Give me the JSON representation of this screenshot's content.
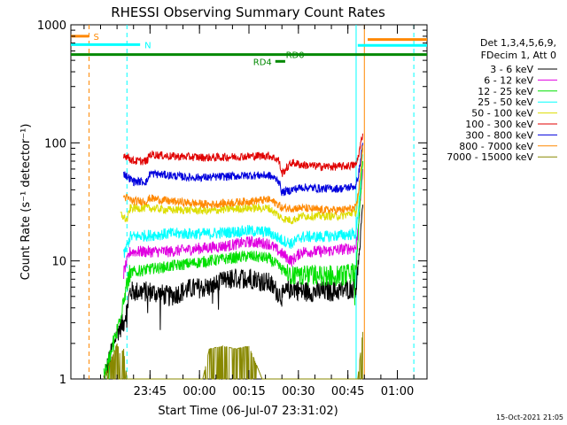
{
  "chart_data": {
    "type": "line",
    "title": "RHESSI Observing Summary Count Rates",
    "xlabel": "Start Time (06-Jul-07 23:31:02)",
    "ylabel": "Count Rate (s⁻¹ detector⁻¹)",
    "y_scale": "log",
    "ylim": [
      1,
      1000
    ],
    "xlim_minutes": [
      -10,
      98
    ],
    "x_ticks": [
      {
        "minute": 14,
        "label": "23:45"
      },
      {
        "minute": 29,
        "label": "00:00"
      },
      {
        "minute": 44,
        "label": "00:15"
      },
      {
        "minute": 59,
        "label": "00:30"
      },
      {
        "minute": 74,
        "label": "00:45"
      },
      {
        "minute": 89,
        "label": "01:00"
      }
    ],
    "y_ticks": [
      {
        "value": 1,
        "label": "1"
      },
      {
        "value": 10,
        "label": "10"
      },
      {
        "value": 100,
        "label": "100"
      },
      {
        "value": 1000,
        "label": "1000"
      }
    ],
    "grid": false,
    "legend_position": "right",
    "legend_header": [
      "Det 1,3,4,5,6,9,",
      "FDecim 1, Att 0"
    ],
    "series": [
      {
        "name": "3 - 6 keV",
        "color": "#000000",
        "x": [
          0,
          4,
          6,
          8,
          14,
          20,
          26,
          32,
          38,
          44,
          50,
          54,
          57,
          60,
          66,
          72,
          76.5,
          77.5,
          78.5
        ],
        "y": [
          1,
          2.5,
          3,
          5.5,
          5.5,
          5,
          5.8,
          6,
          7,
          7.2,
          6.5,
          5,
          6,
          5.5,
          5.5,
          5.6,
          6,
          12,
          30
        ]
      },
      {
        "name": "6 - 12 keV",
        "color": "#e000e0",
        "x": [
          6,
          8,
          14,
          20,
          26,
          32,
          38,
          44,
          50,
          54,
          57,
          60,
          66,
          72,
          76.5,
          77.5,
          78.5
        ],
        "y": [
          8,
          12,
          12,
          12,
          12.5,
          13,
          13.5,
          14.5,
          14,
          11.5,
          10,
          12,
          12,
          12.5,
          13,
          25,
          60
        ]
      },
      {
        "name": "12 - 25 keV",
        "color": "#00e000",
        "x": [
          0,
          4,
          6,
          8,
          14,
          20,
          26,
          32,
          38,
          44,
          50,
          54,
          57,
          60,
          66,
          72,
          76.5,
          77.5,
          78.5
        ],
        "y": [
          1,
          2.5,
          5,
          8,
          8.5,
          9,
          9.5,
          10,
          10.5,
          11,
          10.5,
          8.5,
          7.5,
          7.5,
          7.5,
          7.5,
          8,
          25,
          70
        ]
      },
      {
        "name": "25 - 50 keV",
        "color": "#00ffff",
        "x": [
          6,
          8,
          14,
          20,
          26,
          32,
          38,
          44,
          50,
          54,
          57,
          60,
          66,
          72,
          76.5,
          77.5,
          78.5
        ],
        "y": [
          11,
          16,
          16.5,
          17,
          17,
          17,
          17.5,
          18,
          17.5,
          15,
          14,
          16,
          16,
          16.5,
          17,
          35,
          80
        ]
      },
      {
        "name": "50 - 100 keV",
        "color": "#dddd00",
        "x": [
          5,
          7,
          8,
          14,
          20,
          26,
          32,
          38,
          44,
          50,
          54,
          57,
          60,
          66,
          72,
          76.5,
          77.5,
          78.5
        ],
        "y": [
          25,
          22,
          28,
          28,
          27,
          27,
          26.5,
          27.5,
          28,
          28,
          23,
          22,
          24,
          24,
          24,
          26,
          40,
          90
        ]
      },
      {
        "name": "100 - 300 keV",
        "color": "#e00000",
        "x": [
          6,
          9,
          13,
          14,
          20,
          26,
          32,
          38,
          44,
          50,
          53,
          54,
          57,
          60,
          66,
          72,
          76.5,
          77.5,
          78.5
        ],
        "y": [
          80,
          70,
          70,
          80,
          77,
          76,
          75,
          76,
          77,
          78,
          72,
          55,
          68,
          65,
          63,
          63,
          65,
          85,
          120
        ]
      },
      {
        "name": "300 - 800 keV",
        "color": "#0000dd",
        "x": [
          6,
          9,
          13,
          14,
          20,
          26,
          32,
          38,
          44,
          50,
          53,
          54,
          57,
          60,
          66,
          72,
          76.5,
          77.5,
          78.5
        ],
        "y": [
          55,
          47,
          47,
          55,
          53,
          51,
          51,
          52,
          53,
          53,
          48,
          38,
          40,
          42,
          41,
          41,
          43,
          60,
          100
        ]
      },
      {
        "name": "800 - 7000 keV",
        "color": "#ff8800",
        "x": [
          6,
          9,
          13,
          14,
          20,
          26,
          32,
          38,
          44,
          50,
          53,
          54,
          57,
          60,
          66,
          72,
          76.5,
          77.5,
          78.5
        ],
        "y": [
          35,
          32,
          32,
          34,
          32,
          31,
          30,
          31,
          32,
          33,
          30,
          28,
          28,
          28,
          27,
          27,
          28,
          45,
          95
        ]
      },
      {
        "name": "7000 - 15000 keV",
        "color": "#888800",
        "x": [
          0,
          4,
          5,
          6,
          7,
          30,
          32,
          36,
          40,
          44,
          48,
          77,
          78.5
        ],
        "y": [
          1,
          2,
          1.6,
          1.8,
          1,
          1,
          1.8,
          1.9,
          1.8,
          1.9,
          1,
          1,
          2.5
        ]
      }
    ],
    "annotations": [
      {
        "text": "S",
        "color": "#ff8800",
        "x_start": -10,
        "x_end": -4.5,
        "y": 800
      },
      {
        "text": "N",
        "color": "#00ffff",
        "x_start": -10,
        "x_end": 11,
        "y": 680
      },
      {
        "text": "RD0",
        "color": "#008800",
        "x_start": -10,
        "x_end": 98,
        "y": 560
      },
      {
        "text": "RD4",
        "color": "#008800",
        "x_start": 52,
        "x_end": 55,
        "y": 490
      }
    ],
    "vertical_lines": [
      {
        "minute": -4.5,
        "color": "#ff8800",
        "style": "dashed"
      },
      {
        "minute": 7,
        "color": "#00ffff",
        "style": "dashed"
      },
      {
        "minute": 76.5,
        "color": "#00ffff",
        "style": "solid"
      },
      {
        "minute": 79,
        "color": "#ff8800",
        "style": "solid"
      },
      {
        "minute": 94,
        "color": "#00ffff",
        "style": "dashed"
      }
    ],
    "right_segments": [
      {
        "color": "#ff8800",
        "x_start": 80,
        "x_end": 98,
        "y": 750
      },
      {
        "color": "#00ffff",
        "x_start": 77,
        "x_end": 98,
        "y": 670
      }
    ],
    "timestamp": "15-Oct-2021 21:05"
  }
}
